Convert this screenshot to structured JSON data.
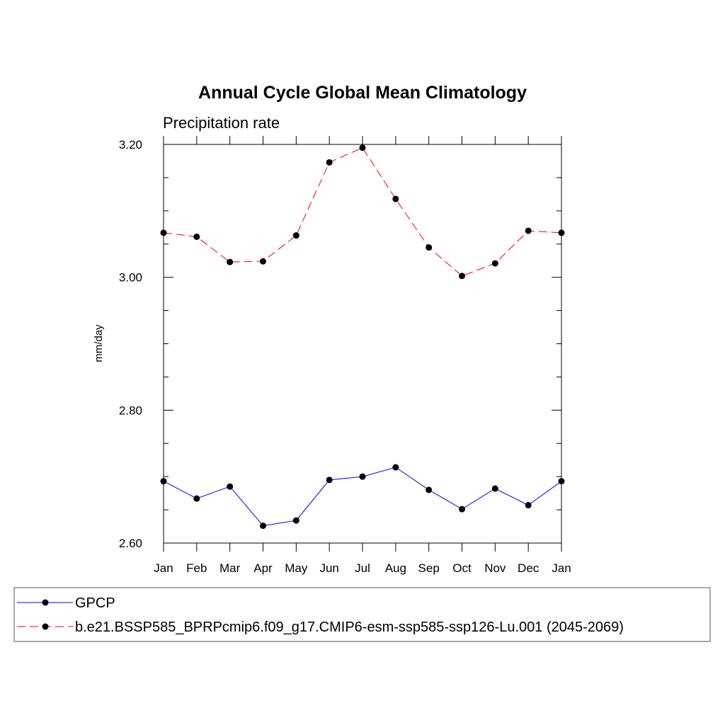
{
  "chart_data": {
    "type": "line",
    "title": "Annual Cycle Global Mean Climatology",
    "subtitle": "Precipitation rate",
    "xlabel": "",
    "ylabel": "mm/day",
    "categories": [
      "Jan",
      "Feb",
      "Mar",
      "Apr",
      "May",
      "Jun",
      "Jul",
      "Aug",
      "Sep",
      "Oct",
      "Nov",
      "Dec",
      "Jan"
    ],
    "ylim": [
      2.6,
      3.2
    ],
    "yticks": [
      2.6,
      2.8,
      3.0,
      3.2
    ],
    "ytick_labels": [
      "2.60",
      "2.80",
      "3.00",
      "3.20"
    ],
    "grid": false,
    "legend_position": "bottom",
    "series": [
      {
        "name": "GPCP",
        "color": "#0000ff",
        "style": "solid",
        "marker": "filled-circle",
        "values": [
          2.693,
          2.667,
          2.685,
          2.626,
          2.634,
          2.695,
          2.7,
          2.714,
          2.68,
          2.651,
          2.682,
          2.657,
          2.693
        ]
      },
      {
        "name": "b.e21.BSSP585_BPRPcmip6.f09_g17.CMIP6-esm-ssp585-ssp126-Lu.001 (2045-2069)",
        "color": "#ff0000",
        "style": "dashed",
        "marker": "filled-circle",
        "values": [
          3.067,
          3.061,
          3.023,
          3.024,
          3.063,
          3.173,
          3.195,
          3.118,
          3.045,
          3.002,
          3.021,
          3.07,
          3.067
        ]
      }
    ]
  }
}
